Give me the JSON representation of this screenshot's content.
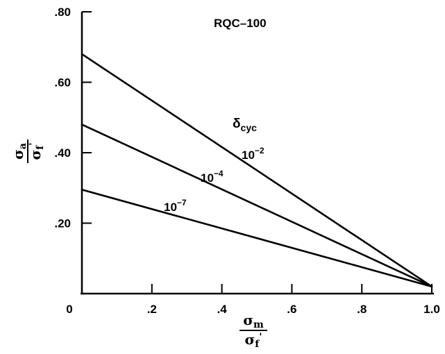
{
  "chart_data": {
    "type": "line",
    "title": "RQC–100",
    "xlabel": {
      "numerator": "σ",
      "numerator_sub": "m",
      "denominator": "σ",
      "denominator_sub": "f",
      "denominator_prime": "'"
    },
    "ylabel": {
      "numerator": "σ",
      "numerator_sub": "a",
      "denominator": "σ",
      "denominator_sub": "f",
      "denominator_prime": "'"
    },
    "xlim": [
      0,
      1.0
    ],
    "ylim": [
      0,
      0.8
    ],
    "x_ticks": [
      {
        "value": 0,
        "label": "0"
      },
      {
        "value": 0.2,
        "label": ".2"
      },
      {
        "value": 0.4,
        "label": ".4"
      },
      {
        "value": 0.6,
        "label": ".6"
      },
      {
        "value": 0.8,
        "label": ".8"
      },
      {
        "value": 1.0,
        "label": "1.0"
      }
    ],
    "y_ticks": [
      {
        "value": 0.2,
        "label": ".20"
      },
      {
        "value": 0.4,
        "label": ".40"
      },
      {
        "value": 0.6,
        "label": ".60"
      },
      {
        "value": 0.8,
        "label": ".80"
      }
    ],
    "grid": false,
    "legend_header": {
      "base": "δ",
      "sub": "cyc"
    },
    "series": [
      {
        "name": "10-2",
        "label_base": "10",
        "label_exp": "−2",
        "x": [
          0,
          1.0
        ],
        "y": [
          0.68,
          0.02
        ]
      },
      {
        "name": "10-4",
        "label_base": "10",
        "label_exp": "−4",
        "x": [
          0,
          1.0
        ],
        "y": [
          0.48,
          0.02
        ]
      },
      {
        "name": "10-7",
        "label_base": "10",
        "label_exp": "−7",
        "x": [
          0,
          1.0
        ],
        "y": [
          0.295,
          0.02
        ]
      }
    ]
  }
}
